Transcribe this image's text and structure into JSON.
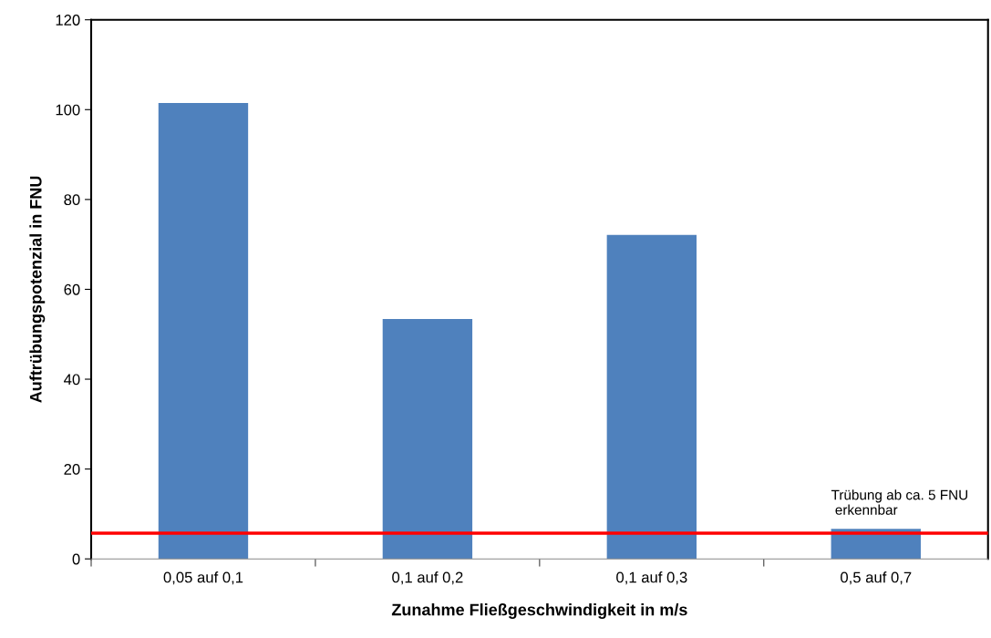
{
  "chart_data": {
    "type": "bar",
    "xlabel": "Zunahme Fließgeschwindigkeit in m/s",
    "ylabel": "Auftrübungspotenzial in FNU",
    "categories": [
      "0,05 auf 0,1",
      "0,1 auf 0,2",
      "0,1 auf 0,3",
      "0,5 auf 0,7"
    ],
    "values": [
      101.5,
      53.4,
      72.1,
      6.7
    ],
    "color": "#4f81bd",
    "ylim": [
      0,
      120
    ],
    "yticks": [
      0,
      20,
      40,
      60,
      80,
      100,
      120
    ],
    "grid": false,
    "legend": false,
    "ref_lines": [
      {
        "axis": "y",
        "value": 5.7,
        "label": "Trübung ab ca. 5 FNU\n erkennbar",
        "color": "#ff0000",
        "line_style": "solid"
      }
    ]
  }
}
